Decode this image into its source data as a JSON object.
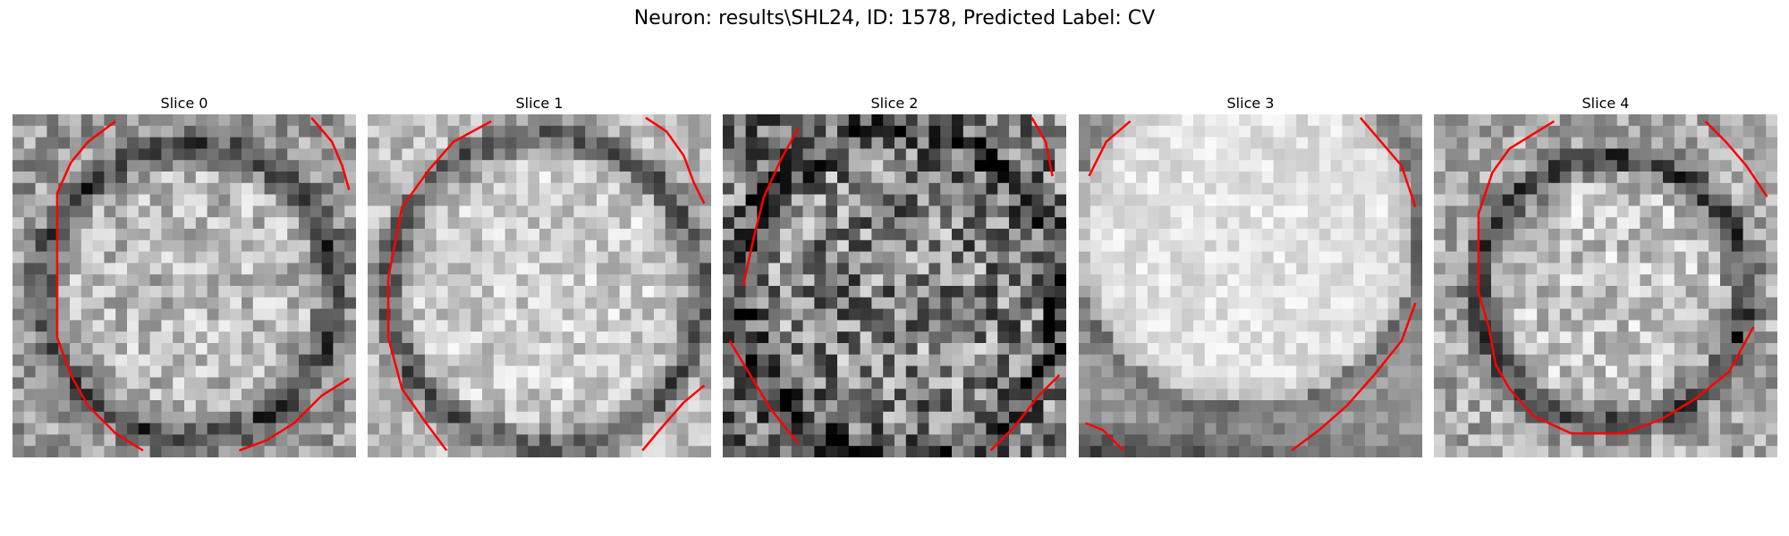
{
  "figure": {
    "title": "Neuron: results\\SHL24, ID: 1578, Predicted Label: CV"
  },
  "panels": [
    {
      "title": "Slice 0"
    },
    {
      "title": "Slice 1"
    },
    {
      "title": "Slice 2"
    },
    {
      "title": "Slice 3"
    },
    {
      "title": "Slice 4"
    }
  ],
  "contour_color": "#ff0000",
  "colormap": "gray"
}
